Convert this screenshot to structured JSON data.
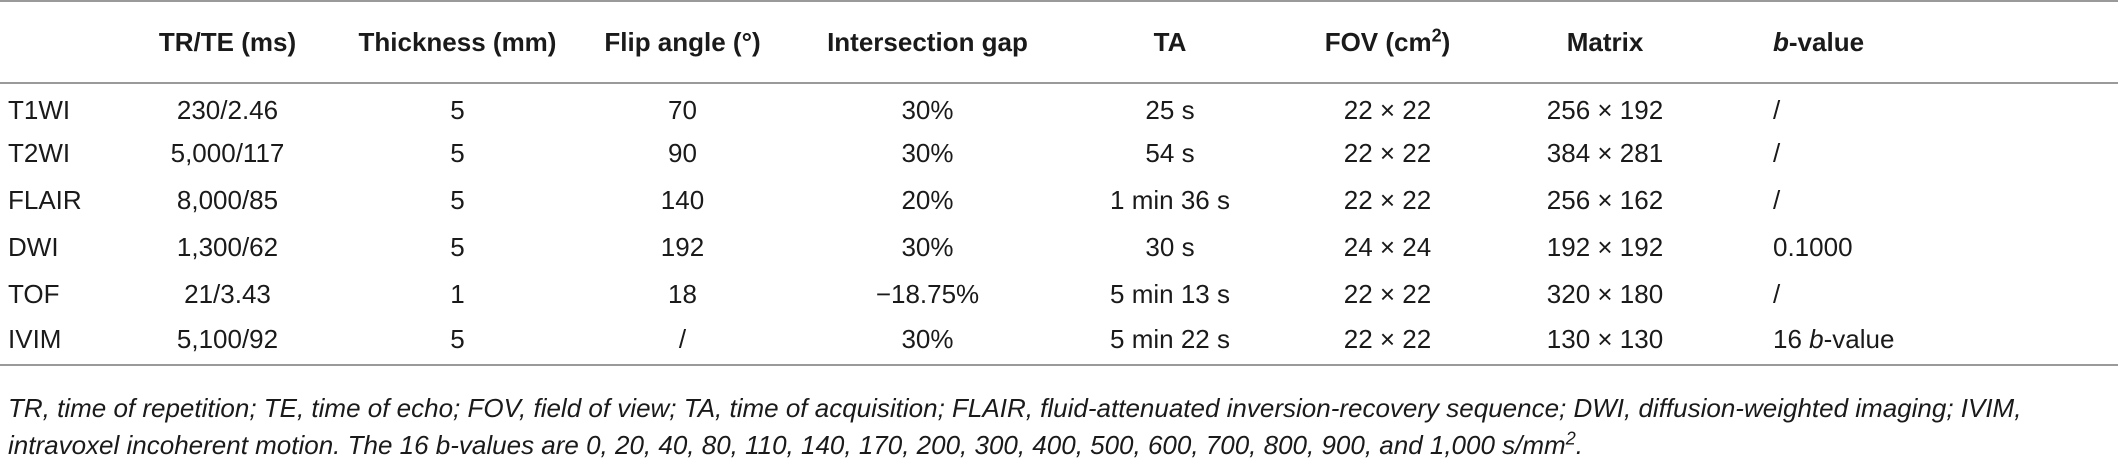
{
  "table": {
    "headers": [
      {
        "pre": "",
        "sup": "",
        "post": ""
      },
      {
        "pre": "TR/TE (ms)",
        "sup": "",
        "post": ""
      },
      {
        "pre": "Thickness (mm)",
        "sup": "",
        "post": ""
      },
      {
        "pre": "Flip angle (°)",
        "sup": "",
        "post": ""
      },
      {
        "pre": "Intersection gap",
        "sup": "",
        "post": ""
      },
      {
        "pre": "TA",
        "sup": "",
        "post": ""
      },
      {
        "pre": "FOV (cm",
        "sup": "2",
        "post": ")"
      },
      {
        "pre": "Matrix",
        "sup": "",
        "post": ""
      },
      {
        "pre": "b",
        "sup": "",
        "post": "-value"
      }
    ],
    "rows": [
      {
        "sequence": "T1WI",
        "tr_te": "230/2.46",
        "thickness": "5",
        "flip_angle": "70",
        "gap": "30%",
        "ta": "25 s",
        "fov": "22 × 22",
        "matrix": "256 × 192",
        "b_value": "/"
      },
      {
        "sequence": "T2WI",
        "tr_te": "5,000/117",
        "thickness": "5",
        "flip_angle": "90",
        "gap": "30%",
        "ta": "54 s",
        "fov": "22 × 22",
        "matrix": "384 × 281",
        "b_value": "/"
      },
      {
        "sequence": "FLAIR",
        "tr_te": "8,000/85",
        "thickness": "5",
        "flip_angle": "140",
        "gap": "20%",
        "ta": "1 min 36 s",
        "fov": "22 × 22",
        "matrix": "256 × 162",
        "b_value": "/"
      },
      {
        "sequence": "DWI",
        "tr_te": "1,300/62",
        "thickness": "5",
        "flip_angle": "192",
        "gap": "30%",
        "ta": "30 s",
        "fov": "24 × 24",
        "matrix": "192 × 192",
        "b_value": "0.1000"
      },
      {
        "sequence": "TOF",
        "tr_te": "21/3.43",
        "thickness": "1",
        "flip_angle": "18",
        "gap": "−18.75%",
        "ta": "5 min 13 s",
        "fov": "22 × 22",
        "matrix": "320 × 180",
        "b_value": "/"
      },
      {
        "sequence": "IVIM",
        "tr_te": "5,100/92",
        "thickness": "5",
        "flip_angle": "/",
        "gap": "30%",
        "ta": "5 min 22 s",
        "fov": "22 × 22",
        "matrix": "130 × 130",
        "b_value": "16 b-value"
      }
    ]
  },
  "footnote": {
    "text_before_sup": "TR, time of repetition; TE, time of echo; FOV, field of view; TA, time of acquisition; FLAIR, fluid-attenuated inversion-recovery sequence; DWI, diffusion-weighted imaging; IVIM, intravoxel incoherent motion. The 16 b-values are 0, 20, 40, 80, 110, 140, 170, 200, 300, 400, 500, 600, 700, 800, 900, and 1,000 s/mm",
    "sup": "2",
    "text_after_sup": "."
  }
}
